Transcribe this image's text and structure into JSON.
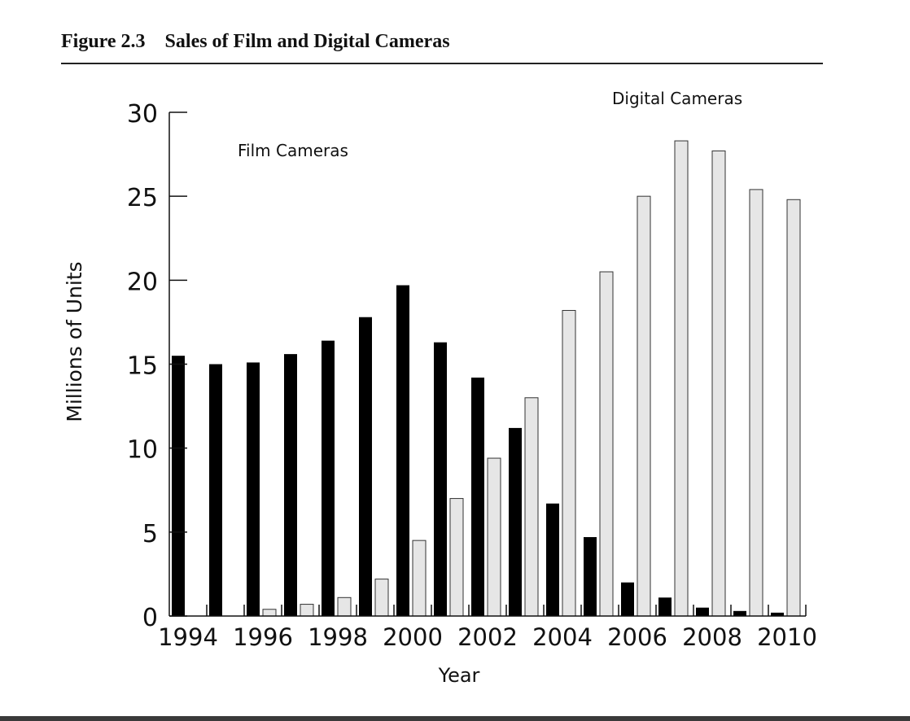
{
  "figure": {
    "number": "Figure 2.3",
    "title": "Sales of Film and Digital Cameras"
  },
  "chart_data": {
    "type": "bar",
    "title": "Sales of Film and Digital Cameras",
    "xlabel": "Year",
    "ylabel": "Millions of Units",
    "ylim": [
      0,
      30
    ],
    "yticks": [
      0,
      5,
      10,
      15,
      20,
      25,
      30
    ],
    "grid": false,
    "legend": "annotations",
    "categories": [
      "1994",
      "1995",
      "1996",
      "1997",
      "1998",
      "1999",
      "2000",
      "2001",
      "2002",
      "2003",
      "2004",
      "2005",
      "2006",
      "2007",
      "2008",
      "2009",
      "2010"
    ],
    "xtick_labels": [
      "1994",
      "1996",
      "1998",
      "2000",
      "2002",
      "2004",
      "2006",
      "2008",
      "2010"
    ],
    "series": [
      {
        "name": "Film Cameras",
        "color": "#000000",
        "values": [
          15.5,
          15.0,
          15.1,
          15.6,
          16.4,
          17.8,
          19.7,
          16.3,
          14.2,
          11.2,
          6.7,
          4.7,
          2.0,
          1.1,
          0.5,
          0.3,
          0.2
        ]
      },
      {
        "name": "Digital Cameras",
        "color": "#e6e6e6",
        "values": [
          0,
          0,
          0.4,
          0.7,
          1.1,
          2.2,
          4.5,
          7.0,
          9.4,
          13.0,
          18.2,
          20.5,
          25.0,
          28.3,
          27.7,
          25.4,
          24.8
        ]
      }
    ]
  }
}
